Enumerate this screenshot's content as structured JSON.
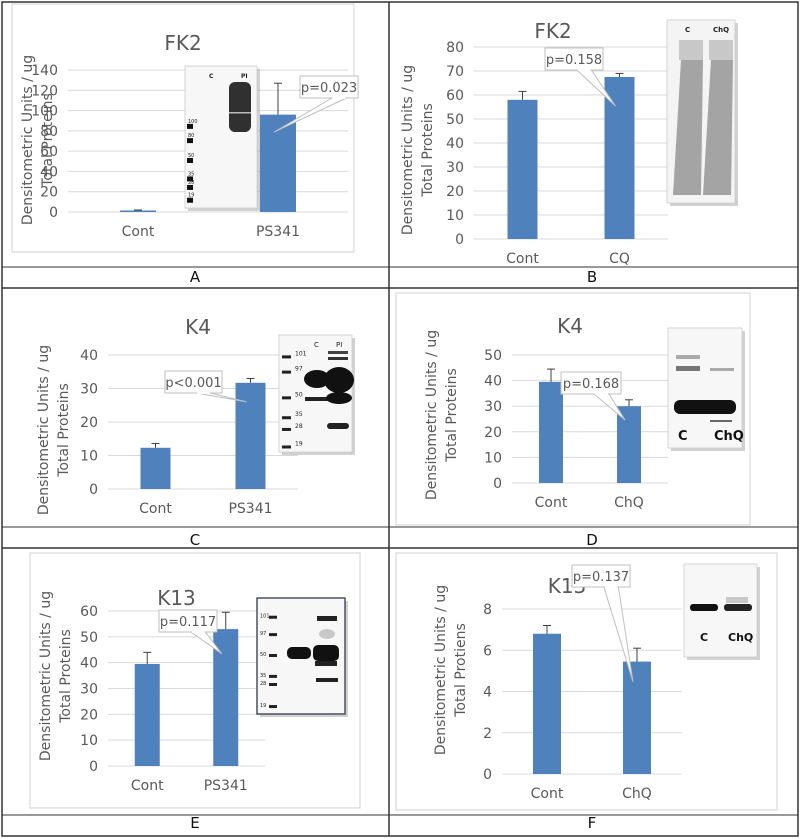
{
  "figure": {
    "panel_letters": [
      "A",
      "B",
      "C",
      "D",
      "E",
      "F"
    ]
  },
  "colors": {
    "bar": "#4f81bd",
    "grid": "#d9d9d9",
    "text": "#595959",
    "frame": "#333333",
    "chart_border": "#d9d9d9"
  },
  "chart_data": [
    {
      "panel": "A",
      "type": "bar",
      "title": "FK2",
      "ylabel": "Densitometric Units / ug\nTotal Proteins",
      "categories": [
        "Cont",
        "PS341"
      ],
      "values": [
        1.5,
        96
      ],
      "errors": [
        0.5,
        31
      ],
      "ylim": [
        0,
        140
      ],
      "yticks": [
        0,
        20,
        40,
        60,
        80,
        100,
        120,
        140
      ],
      "grid": true,
      "annotation": {
        "text": "p=0.023",
        "target_category": "PS341"
      },
      "blot": {
        "lanes": [
          "C",
          "PI"
        ],
        "markers": [
          "100",
          "80",
          "50",
          "35",
          "28",
          "19"
        ]
      }
    },
    {
      "panel": "B",
      "type": "bar",
      "title": "FK2",
      "ylabel": "Densitometric Units / ug\nTotal Proteins",
      "categories": [
        "Cont",
        "CQ"
      ],
      "values": [
        58,
        67.5
      ],
      "errors": [
        3.5,
        1.5
      ],
      "ylim": [
        0,
        80
      ],
      "yticks": [
        0,
        10,
        20,
        30,
        40,
        50,
        60,
        70,
        80
      ],
      "grid": true,
      "annotation": {
        "text": "p=0.158",
        "target_category": "CQ"
      },
      "blot": {
        "lanes": [
          "C",
          "ChQ"
        ],
        "markers": []
      }
    },
    {
      "panel": "C",
      "type": "bar",
      "title": "K4",
      "ylabel": "Densitometric Units / ug\nTotal Proteins",
      "categories": [
        "Cont",
        "PS341"
      ],
      "values": [
        12.3,
        31.7
      ],
      "errors": [
        1.3,
        1.3
      ],
      "ylim": [
        0,
        40
      ],
      "yticks": [
        0,
        10,
        20,
        30,
        40
      ],
      "grid": true,
      "annotation": {
        "text": "p<0.001",
        "target_category": "PS341"
      },
      "blot": {
        "lanes": [
          "C",
          "PI"
        ],
        "markers": [
          "101",
          "97",
          "50",
          "35",
          "28",
          "19"
        ]
      }
    },
    {
      "panel": "D",
      "type": "bar",
      "title": "K4",
      "ylabel": "Densitometric Units / ug\nTotal Proteins",
      "categories": [
        "Cont",
        "ChQ"
      ],
      "values": [
        39.5,
        30
      ],
      "errors": [
        5,
        2.5
      ],
      "ylim": [
        0,
        50
      ],
      "yticks": [
        0,
        10,
        20,
        30,
        40,
        50
      ],
      "grid": true,
      "annotation": {
        "text": "p=0.168",
        "target_category": "ChQ"
      },
      "blot": {
        "lanes": [
          "C",
          "ChQ"
        ],
        "markers": []
      }
    },
    {
      "panel": "E",
      "type": "bar",
      "title": "K13",
      "ylabel": "Densitometric Units / ug\nTotal Proteins",
      "categories": [
        "Cont",
        "PS341"
      ],
      "values": [
        39.5,
        53
      ],
      "errors": [
        4.5,
        6.5
      ],
      "ylim": [
        0,
        60
      ],
      "yticks": [
        0,
        10,
        20,
        30,
        40,
        50,
        60
      ],
      "grid": true,
      "annotation": {
        "text": "p=0.117",
        "target_category": "PS341"
      },
      "blot": {
        "lanes": [],
        "markers": [
          "101",
          "97",
          "50",
          "35",
          "28",
          "19"
        ]
      }
    },
    {
      "panel": "F",
      "type": "bar",
      "title": "K13",
      "ylabel": "Densitometric Units / ug\nTotal Protiens",
      "categories": [
        "Cont",
        "ChQ"
      ],
      "values": [
        6.8,
        5.45
      ],
      "errors": [
        0.4,
        0.65
      ],
      "ylim": [
        0,
        8
      ],
      "yticks": [
        0,
        2,
        4,
        6,
        8
      ],
      "grid": true,
      "annotation": {
        "text": "p=0.137",
        "target_category": "ChQ"
      },
      "blot": {
        "lanes": [
          "C",
          "ChQ"
        ],
        "markers": []
      }
    }
  ]
}
